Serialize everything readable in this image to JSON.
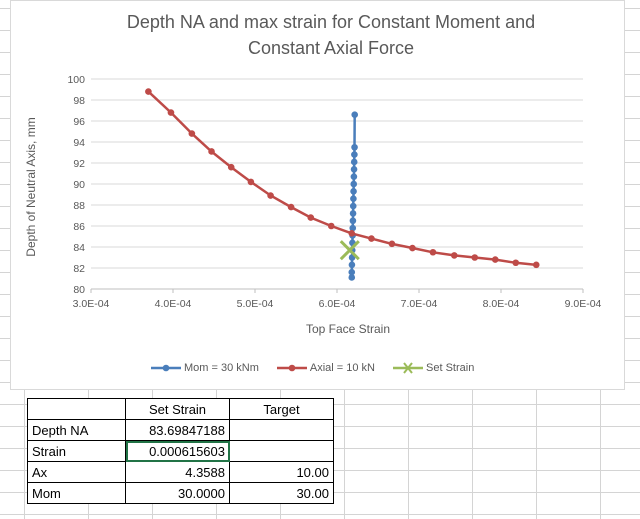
{
  "chart_data": {
    "type": "scatter",
    "title_line1": "Depth NA and max strain for Constant Moment and",
    "title_line2": "Constant Axial Force",
    "xlabel": "Top Face Strain",
    "ylabel": "Depth of Neutral Axis, mm",
    "xlim": [
      0.0003,
      0.0009
    ],
    "ylim": [
      80,
      100
    ],
    "x_ticks": [
      0.0003,
      0.0004,
      0.0005,
      0.0006,
      0.0007,
      0.0008,
      0.0009
    ],
    "x_tick_labels": [
      "3.0E-04",
      "4.0E-04",
      "5.0E-04",
      "6.0E-04",
      "7.0E-04",
      "8.0E-04",
      "9.0E-04"
    ],
    "y_ticks": [
      80,
      82,
      84,
      86,
      88,
      90,
      92,
      94,
      96,
      98,
      100
    ],
    "y_tick_labels": [
      "80",
      "82",
      "84",
      "86",
      "88",
      "90",
      "92",
      "94",
      "96",
      "98",
      "100"
    ],
    "legend_position": "bottom",
    "series": [
      {
        "name": "Mom = 30 kNm",
        "color": "#4a7ebb",
        "marker": "circle",
        "line": true,
        "x": [
          0.000618,
          0.000618,
          0.0006182,
          0.0006184,
          0.0006186,
          0.0006188,
          0.000619,
          0.0006192,
          0.0006194,
          0.0006196,
          0.0006198,
          0.00062,
          0.0006202,
          0.0006204,
          0.0006206,
          0.0006208,
          0.000621,
          0.0006212,
          0.0006214,
          0.0006216
        ],
        "y": [
          81.1,
          81.6,
          82.3,
          83.0,
          83.7,
          84.4,
          85.1,
          85.8,
          86.5,
          87.2,
          87.9,
          88.6,
          89.3,
          90.0,
          90.7,
          91.4,
          92.1,
          92.8,
          93.5,
          96.6
        ]
      },
      {
        "name": "Axial = 10 kN",
        "color": "#be4b48",
        "marker": "circle",
        "line": true,
        "x": [
          0.00037,
          0.0003975,
          0.000423,
          0.000447,
          0.000471,
          0.000495,
          0.000519,
          0.000544,
          0.000568,
          0.000593,
          0.000618,
          0.000642,
          0.000667,
          0.000692,
          0.000717,
          0.000743,
          0.000768,
          0.000793,
          0.000818,
          0.000843
        ],
        "y": [
          98.8,
          96.8,
          94.8,
          93.1,
          91.6,
          90.2,
          88.9,
          87.8,
          86.8,
          86.0,
          85.3,
          84.8,
          84.3,
          83.9,
          83.5,
          83.2,
          83.0,
          82.8,
          82.5,
          82.3
        ]
      },
      {
        "name": "Set Strain",
        "color": "#9bbb59",
        "marker": "x",
        "line": false,
        "x": [
          0.000615603
        ],
        "y": [
          83.69847188
        ]
      }
    ]
  },
  "table": {
    "header": [
      "",
      "Set Strain",
      "Target"
    ],
    "rows": [
      [
        "Depth NA",
        "83.69847188",
        ""
      ],
      [
        "Strain",
        "0.000615603",
        ""
      ],
      [
        "Ax",
        "4.3588",
        "10.00"
      ],
      [
        "Mom",
        "30.0000",
        "30.00"
      ]
    ]
  }
}
